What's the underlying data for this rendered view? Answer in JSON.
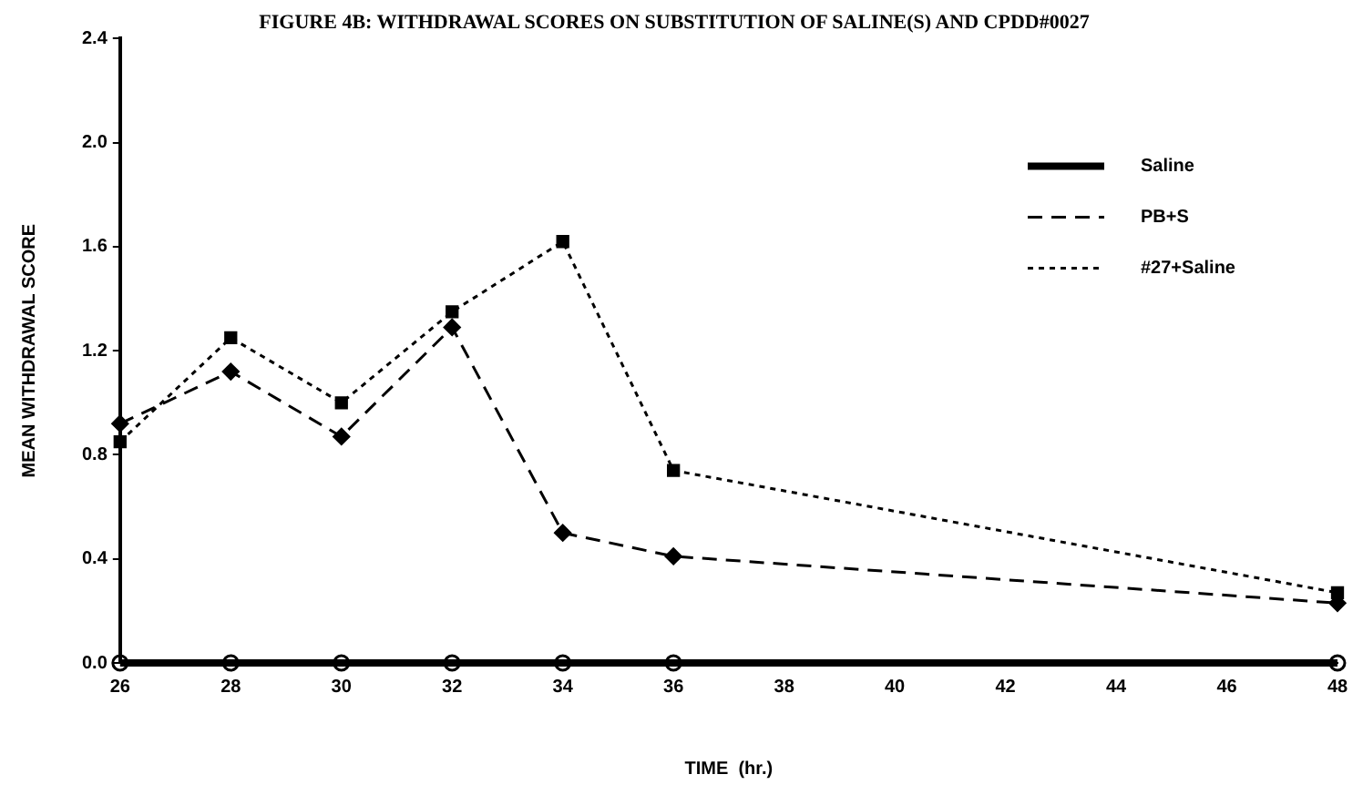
{
  "chart_data": {
    "type": "line",
    "title": "FIGURE 4B: WITHDRAWAL SCORES ON SUBSTITUTION OF SALINE(S) AND CPDD#0027",
    "xlabel": "TIME  (hr.)",
    "ylabel": "MEAN WITHDRAWAL SCORE",
    "x": [
      26,
      28,
      30,
      32,
      34,
      36,
      48
    ],
    "series": [
      {
        "name": "Saline",
        "color": "#000000",
        "values": [
          0,
          0,
          0,
          0,
          0,
          0,
          0
        ],
        "marker": "circle",
        "line_style": "solid"
      },
      {
        "name": "PB+S",
        "color": "#000000",
        "values": [
          0.92,
          1.12,
          0.87,
          1.29,
          0.5,
          0.41,
          0.23
        ],
        "marker": "diamond",
        "line_style": "dashed"
      },
      {
        "name": "#27+Saline",
        "color": "#000000",
        "values": [
          0.85,
          1.25,
          1.0,
          1.35,
          1.62,
          0.74,
          0.27
        ],
        "marker": "square",
        "line_style": "dotted"
      }
    ],
    "xlim": [
      26,
      48
    ],
    "xticks": [
      26,
      28,
      30,
      32,
      34,
      36,
      38,
      40,
      42,
      44,
      46,
      48
    ],
    "ylim": [
      0,
      2.4
    ],
    "yticks": [
      {
        "value": 0,
        "label": "0.0"
      },
      0.4,
      0.8,
      1.2,
      1.6,
      {
        "value": 2,
        "label": "2.0"
      },
      2.4
    ],
    "grid": false,
    "legend": "top right"
  }
}
